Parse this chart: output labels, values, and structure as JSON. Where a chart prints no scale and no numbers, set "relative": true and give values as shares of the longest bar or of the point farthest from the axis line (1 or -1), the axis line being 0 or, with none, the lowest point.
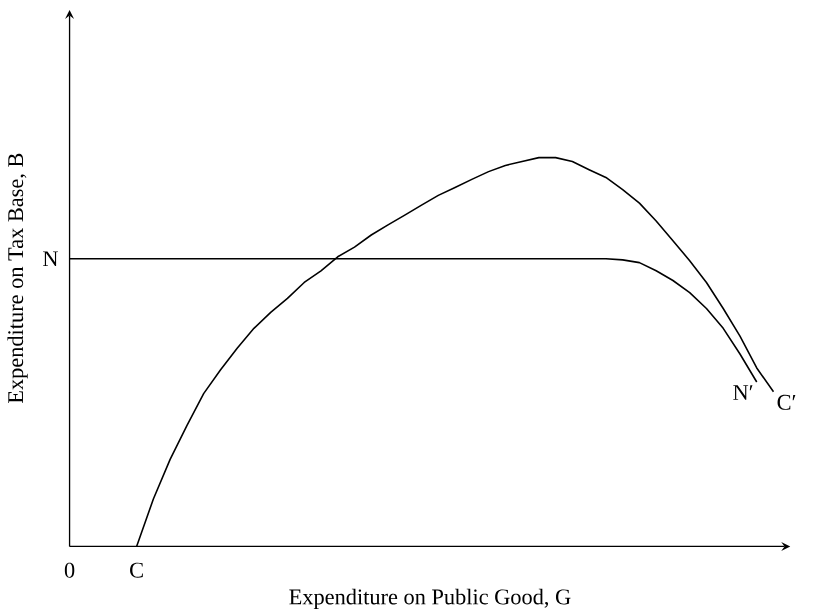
{
  "chart_data": {
    "type": "line",
    "relative": true,
    "marker": "none",
    "xlabel": "Expenditure on Public Good, G",
    "ylabel": "Expenditure on Tax Base, B",
    "categories": [
      "0",
      null,
      null,
      null,
      "C",
      null,
      null,
      null,
      null,
      null,
      null,
      null,
      null,
      null,
      null,
      null,
      null,
      null,
      null,
      null,
      null,
      null,
      null,
      null,
      null,
      null,
      null,
      null,
      null,
      null,
      null,
      null,
      null,
      null,
      null,
      null,
      null,
      null,
      null,
      null,
      null,
      null,
      null
    ],
    "series": [
      {
        "name": "C′",
        "color": "#000000",
        "values": [
          null,
          null,
          null,
          null,
          0,
          0.122,
          0.224,
          0.311,
          0.393,
          0.454,
          0.51,
          0.561,
          0.602,
          0.638,
          0.679,
          0.709,
          0.745,
          0.77,
          0.801,
          0.827,
          0.852,
          0.878,
          0.903,
          0.923,
          0.944,
          0.964,
          0.98,
          0.99,
          1,
          1,
          0.99,
          0.969,
          0.949,
          0.918,
          0.883,
          0.837,
          0.786,
          0.735,
          0.679,
          0.612,
          0.541,
          0.459,
          0.398
        ]
      },
      {
        "name": "N′",
        "color": "#000000",
        "values": [
          0.74,
          0.74,
          0.74,
          0.74,
          0.74,
          0.74,
          0.74,
          0.74,
          0.74,
          0.74,
          0.74,
          0.74,
          0.74,
          0.74,
          0.74,
          0.74,
          0.74,
          0.74,
          0.74,
          0.74,
          0.74,
          0.74,
          0.74,
          0.74,
          0.74,
          0.74,
          0.74,
          0.74,
          0.74,
          0.74,
          0.74,
          0.74,
          0.74,
          0.737,
          0.73,
          0.709,
          0.684,
          0.653,
          0.612,
          0.561,
          0.495,
          0.423,
          null
        ]
      }
    ],
    "annotations": [
      "N"
    ]
  }
}
